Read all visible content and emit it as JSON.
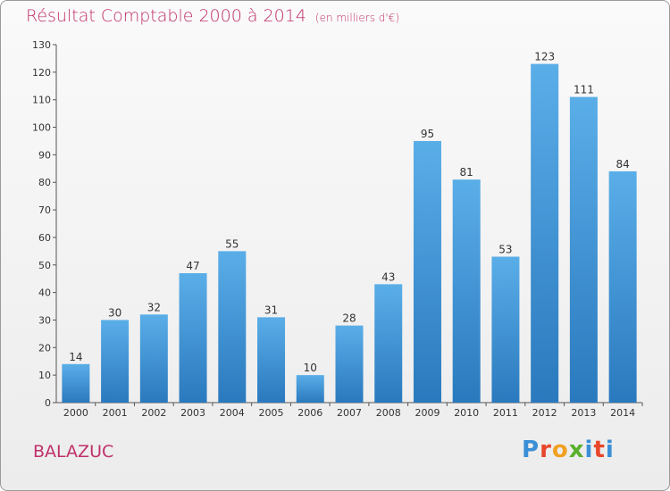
{
  "header": {
    "title": "Résultat Comptable 2000 à 2014",
    "unit": "(en milliers d'€)"
  },
  "footer": {
    "commune": "BALAZUC",
    "logo": "Proxiti"
  },
  "colors": {
    "bar_light": "#5aaee8",
    "bar_dark": "#2a79be",
    "title": "#c0306a",
    "logo_letters": [
      "#3a8fd6",
      "#e8462a",
      "#f0a020",
      "#5ab02e",
      "#3a8fd6",
      "#e8462a",
      "#3a8fd6"
    ]
  },
  "chart_data": {
    "type": "bar",
    "title": "Résultat Comptable 2000 à 2014",
    "subtitle": "(en milliers d'€)",
    "xlabel": "",
    "ylabel": "",
    "categories": [
      "2000",
      "2001",
      "2002",
      "2003",
      "2004",
      "2005",
      "2006",
      "2007",
      "2008",
      "2009",
      "2010",
      "2011",
      "2012",
      "2013",
      "2014"
    ],
    "values": [
      14,
      30,
      32,
      47,
      55,
      31,
      10,
      28,
      43,
      95,
      81,
      53,
      123,
      111,
      84
    ],
    "ylim": [
      0,
      130
    ],
    "yticks": [
      0,
      10,
      20,
      30,
      40,
      50,
      60,
      70,
      80,
      90,
      100,
      110,
      120,
      130
    ],
    "grid": false,
    "legend": "none"
  }
}
